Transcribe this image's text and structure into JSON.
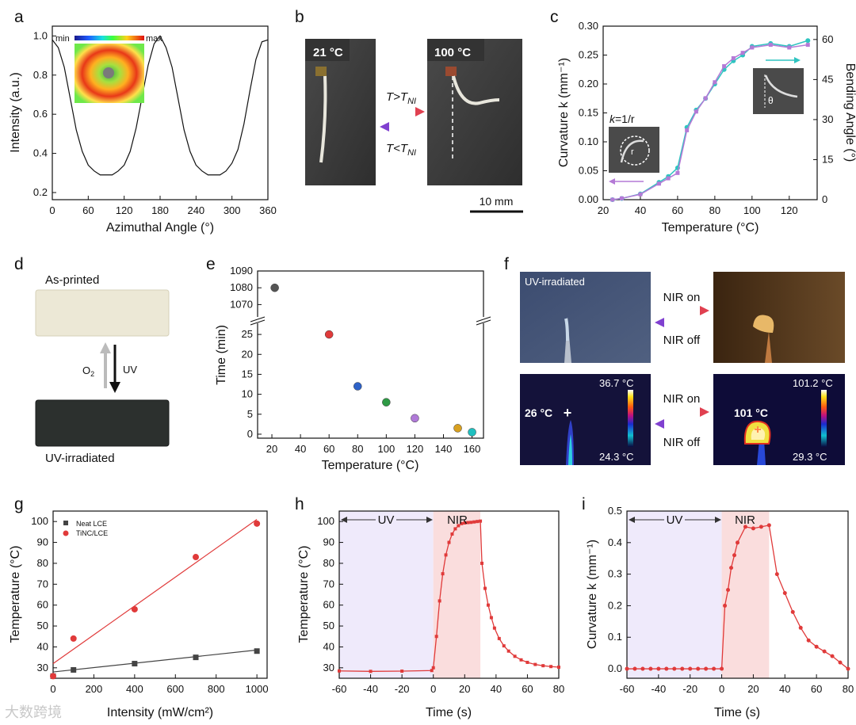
{
  "panels": {
    "a": {
      "label": "a",
      "chart_data": {
        "type": "line",
        "xlabel": "Azimuthal Angle (°)",
        "ylabel": "Intensity (a.u.)",
        "xlim": [
          0,
          360
        ],
        "ylim": [
          0.2,
          1.05
        ],
        "xticks": [
          "0",
          "60",
          "120",
          "180",
          "240",
          "300",
          "360"
        ],
        "yticks": [
          "0.2",
          "0.4",
          "0.6",
          "0.8",
          "1.0"
        ],
        "x": [
          0,
          10,
          20,
          30,
          40,
          50,
          60,
          70,
          80,
          90,
          100,
          110,
          120,
          130,
          140,
          150,
          160,
          170,
          180,
          190,
          200,
          210,
          220,
          230,
          240,
          250,
          260,
          270,
          280,
          290,
          300,
          310,
          320,
          330,
          340,
          350,
          360
        ],
        "values": [
          0.98,
          0.94,
          0.84,
          0.68,
          0.52,
          0.41,
          0.34,
          0.31,
          0.29,
          0.29,
          0.29,
          0.31,
          0.34,
          0.41,
          0.53,
          0.69,
          0.85,
          0.96,
          1.0,
          0.94,
          0.84,
          0.68,
          0.52,
          0.41,
          0.34,
          0.31,
          0.29,
          0.29,
          0.29,
          0.31,
          0.35,
          0.42,
          0.55,
          0.72,
          0.88,
          0.97,
          0.98
        ]
      },
      "inset": {
        "min_label": "min",
        "max_label": "max"
      }
    },
    "b": {
      "label": "b",
      "photo_left_temp": "21 °C",
      "photo_right_temp": "100 °C",
      "arrow_top": "T>T",
      "arrow_top_sub": "NI",
      "arrow_bottom": "T<T",
      "arrow_bottom_sub": "NI",
      "scale_bar": "10 mm"
    },
    "c": {
      "label": "c",
      "chart_data": {
        "type": "line",
        "xlabel": "Temperature (°C)",
        "ylabel_left": "Curvature k (mm⁻¹)",
        "ylabel_right": "Bending Angle (°)",
        "xlim": [
          20,
          135
        ],
        "ylim": [
          0,
          0.3
        ],
        "ylim_right": [
          0,
          65
        ],
        "xticks": [
          "20",
          "40",
          "60",
          "80",
          "100",
          "120"
        ],
        "yticks": [
          "0.00",
          "0.05",
          "0.10",
          "0.15",
          "0.20",
          "0.25",
          "0.30"
        ],
        "yticks_right": [
          "0",
          "15",
          "30",
          "45",
          "60"
        ],
        "series": [
          {
            "name": "Curvature",
            "color": "#2ec4c0",
            "x": [
              25,
              30,
              40,
              50,
              55,
              60,
              65,
              70,
              75,
              80,
              85,
              90,
              95,
              100,
              110,
              120,
              130
            ],
            "values": [
              0.0,
              0.002,
              0.01,
              0.03,
              0.04,
              0.055,
              0.125,
              0.155,
              0.175,
              0.2,
              0.225,
              0.24,
              0.25,
              0.265,
              0.27,
              0.265,
              0.275
            ]
          },
          {
            "name": "Bending Angle",
            "color": "#b47ad6",
            "x": [
              25,
              30,
              40,
              50,
              55,
              60,
              65,
              70,
              75,
              80,
              85,
              90,
              95,
              100,
              110,
              120,
              130
            ],
            "values": [
              0,
              0.5,
              2,
              6,
              8,
              10,
              26,
              33,
              38,
              44,
              50,
              53,
              55,
              57,
              58,
              57,
              58
            ]
          }
        ],
        "annotation_k": "k",
        "annotation_eq": "=1/r",
        "annotation_r": "r",
        "annotation_theta": "θ"
      }
    },
    "d": {
      "label": "d",
      "top_caption": "As-printed",
      "bottom_caption": "UV-irradiated",
      "left_arrow": "O",
      "left_arrow_sub": "2",
      "right_arrow": "UV"
    },
    "e": {
      "label": "e",
      "chart_data": {
        "type": "scatter",
        "xlabel": "Temperature (°C)",
        "ylabel": "Time (min)",
        "xticks": [
          "20",
          "40",
          "60",
          "80",
          "100",
          "120",
          "140",
          "160"
        ],
        "yticks_bottom": [
          "0",
          "5",
          "10",
          "15",
          "20",
          "25"
        ],
        "yticks_top": [
          "1070",
          "1080",
          "1090"
        ],
        "x": [
          22,
          60,
          80,
          100,
          120,
          150,
          160
        ],
        "values": [
          1080,
          25,
          12,
          8,
          4,
          1.5,
          0.5
        ],
        "colors": [
          "#555555",
          "#e03a3a",
          "#2e62c8",
          "#2e9a45",
          "#b07ad8",
          "#d8a020",
          "#20c0c0"
        ]
      }
    },
    "f": {
      "label": "f",
      "photo_caption": "UV-irradiated",
      "nir_on": "NIR on",
      "nir_off": "NIR off",
      "thermal_left_temp": "26 °C",
      "thermal_left_max": "36.7 °C",
      "thermal_left_min": "24.3 °C",
      "thermal_right_temp": "101 °C",
      "thermal_right_max": "101.2 °C",
      "thermal_right_min": "29.3 °C",
      "nir_on_2": "NIR on",
      "nir_off_2": "NIR off"
    },
    "g": {
      "label": "g",
      "chart_data": {
        "type": "scatter",
        "xlabel": "Intensity (mW/cm²)",
        "ylabel": "Temperature (°C)",
        "xlim": [
          0,
          1050
        ],
        "ylim": [
          25,
          105
        ],
        "xticks": [
          "0",
          "200",
          "400",
          "600",
          "800",
          "1000"
        ],
        "yticks": [
          "30",
          "40",
          "50",
          "60",
          "70",
          "80",
          "90",
          "100"
        ],
        "series": [
          {
            "name": "Neat LCE",
            "color": "#444444",
            "x": [
              0,
              100,
              400,
              700,
              1000
            ],
            "values": [
              26,
              29,
              32,
              35,
              38
            ],
            "fit": [
              28,
              38.5
            ]
          },
          {
            "name": "TiNC/LCE",
            "color": "#e03a3a",
            "x": [
              0,
              100,
              400,
              700,
              1000
            ],
            "values": [
              26,
              44,
              58,
              83,
              99
            ],
            "fit": [
              32,
              101
            ]
          }
        ]
      }
    },
    "h": {
      "label": "h",
      "uv_label": "UV",
      "nir_label": "NIR",
      "chart_data": {
        "type": "line",
        "xlabel": "Time (s)",
        "ylabel": "Temperature (°C)",
        "xlim": [
          -60,
          80
        ],
        "ylim": [
          25,
          105
        ],
        "xticks": [
          "-60",
          "-40",
          "-20",
          "0",
          "20",
          "40",
          "60",
          "80"
        ],
        "yticks": [
          "30",
          "40",
          "50",
          "60",
          "70",
          "80",
          "90",
          "100"
        ],
        "x": [
          -60,
          -40,
          -20,
          -1,
          0,
          2,
          4,
          6,
          8,
          10,
          12,
          14,
          16,
          18,
          20,
          22,
          24,
          26,
          28,
          30,
          31,
          33,
          35,
          37,
          39,
          42,
          45,
          48,
          52,
          56,
          60,
          65,
          70,
          75,
          80
        ],
        "values": [
          28.5,
          28.3,
          28.4,
          28.7,
          30,
          45,
          62,
          75,
          84,
          90,
          94,
          96.5,
          98,
          99,
          99.3,
          99.5,
          99.6,
          99.8,
          100,
          100.2,
          80,
          68,
          60,
          54,
          49,
          44,
          40.5,
          38,
          35.5,
          33.8,
          32.6,
          31.6,
          31,
          30.6,
          30.3
        ]
      }
    },
    "i": {
      "label": "i",
      "uv_label": "UV",
      "nir_label": "NIR",
      "chart_data": {
        "type": "line",
        "xlabel": "Time (s)",
        "ylabel": "Curvature k (mm⁻¹)",
        "xlim": [
          -60,
          80
        ],
        "ylim": [
          -0.03,
          0.5
        ],
        "xticks": [
          "-60",
          "-40",
          "-20",
          "0",
          "20",
          "40",
          "60",
          "80"
        ],
        "yticks": [
          "0.0",
          "0.1",
          "0.2",
          "0.3",
          "0.4",
          "0.5"
        ],
        "x": [
          -60,
          -55,
          -50,
          -45,
          -40,
          -35,
          -30,
          -25,
          -20,
          -15,
          -10,
          -5,
          0,
          2,
          4,
          6,
          8,
          10,
          15,
          20,
          25,
          30,
          35,
          40,
          45,
          50,
          55,
          60,
          65,
          70,
          75,
          80
        ],
        "values": [
          0,
          0,
          0,
          0,
          0,
          0,
          0,
          0,
          0,
          0,
          0,
          0,
          0,
          0.2,
          0.25,
          0.32,
          0.36,
          0.4,
          0.45,
          0.445,
          0.45,
          0.455,
          0.3,
          0.24,
          0.18,
          0.13,
          0.09,
          0.07,
          0.055,
          0.04,
          0.02,
          0.0
        ]
      }
    }
  },
  "watermark": "大数跨境"
}
